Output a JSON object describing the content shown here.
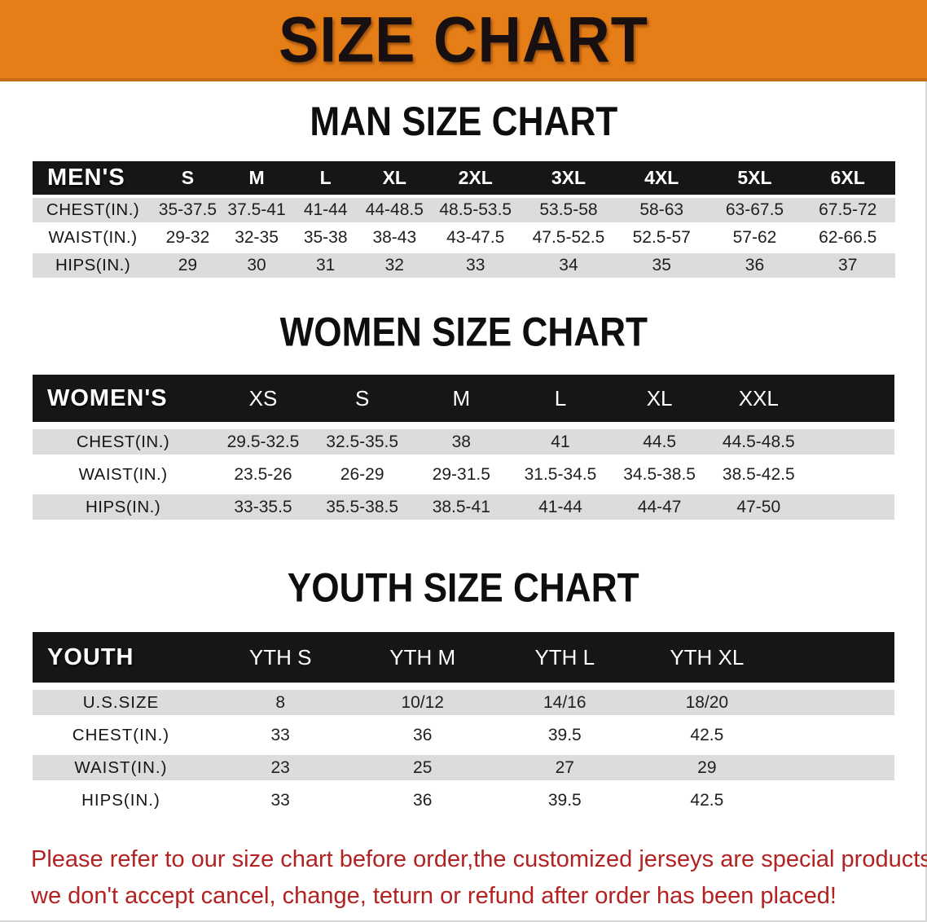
{
  "banner": {
    "title": "SIZE CHART"
  },
  "colors": {
    "banner_bg": "#E67E17",
    "table_header_bg": "#161616",
    "row_shade": "#DCDCDC",
    "disclaimer_red": "#B22222"
  },
  "sections": [
    {
      "title": "MAN SIZE CHART",
      "header_label": "MEN'S",
      "columns": [
        "S",
        "M",
        "L",
        "XL",
        "2XL",
        "3XL",
        "4XL",
        "5XL",
        "6XL"
      ],
      "rows": [
        {
          "label": "CHEST(IN.)",
          "shade": true,
          "values": [
            "35-37.5",
            "37.5-41",
            "41-44",
            "44-48.5",
            "48.5-53.5",
            "53.5-58",
            "58-63",
            "63-67.5",
            "67.5-72"
          ]
        },
        {
          "label": "WAIST(IN.)",
          "shade": false,
          "values": [
            "29-32",
            "32-35",
            "35-38",
            "38-43",
            "43-47.5",
            "47.5-52.5",
            "52.5-57",
            "57-62",
            "62-66.5"
          ]
        },
        {
          "label": "HIPS(IN.)",
          "shade": true,
          "values": [
            "29",
            "30",
            "31",
            "32",
            "33",
            "34",
            "35",
            "36",
            "37"
          ]
        }
      ]
    },
    {
      "title": "WOMEN SIZE CHART",
      "header_label": "WOMEN'S",
      "columns": [
        "XS",
        "S",
        "M",
        "L",
        "XL",
        "XXL"
      ],
      "rows": [
        {
          "label": "CHEST(IN.)",
          "shade": true,
          "values": [
            "29.5-32.5",
            "32.5-35.5",
            "38",
            "41",
            "44.5",
            "44.5-48.5"
          ]
        },
        {
          "label": "WAIST(IN.)",
          "shade": false,
          "values": [
            "23.5-26",
            "26-29",
            "29-31.5",
            "31.5-34.5",
            "34.5-38.5",
            "38.5-42.5"
          ]
        },
        {
          "label": "HIPS(IN.)",
          "shade": true,
          "values": [
            "33-35.5",
            "35.5-38.5",
            "38.5-41",
            "41-44",
            "44-47",
            "47-50"
          ]
        }
      ]
    },
    {
      "title": "YOUTH SIZE CHART",
      "header_label": "YOUTH",
      "columns": [
        "YTH S",
        "YTH M",
        "YTH L",
        "YTH XL"
      ],
      "rows": [
        {
          "label": "U.S.SIZE",
          "shade": true,
          "values": [
            "8",
            "10/12",
            "14/16",
            "18/20"
          ]
        },
        {
          "label": "CHEST(IN.)",
          "shade": false,
          "values": [
            "33",
            "36",
            "39.5",
            "42.5"
          ]
        },
        {
          "label": "WAIST(IN.)",
          "shade": true,
          "values": [
            "23",
            "25",
            "27",
            "29"
          ]
        },
        {
          "label": "HIPS(IN.)",
          "shade": false,
          "values": [
            "33",
            "36",
            "39.5",
            "42.5"
          ]
        }
      ]
    }
  ],
  "disclaimer": {
    "line1": "Please refer to our size chart before order,the customized jerseys are special products,",
    "line2": "we don't accept cancel, change, teturn or refund after order has been placed!"
  }
}
